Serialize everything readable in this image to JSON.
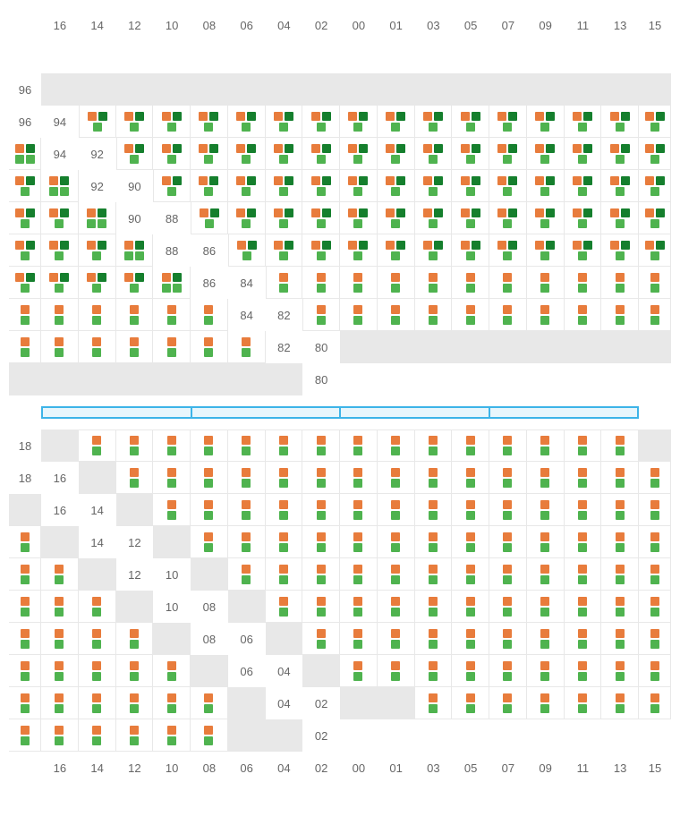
{
  "layout": {
    "columns": [
      "16",
      "14",
      "12",
      "10",
      "08",
      "06",
      "04",
      "02",
      "00",
      "01",
      "03",
      "05",
      "07",
      "09",
      "11",
      "13",
      "15"
    ],
    "top_rows": [
      "96",
      "94",
      "92",
      "90",
      "88",
      "86",
      "84",
      "82",
      "80"
    ],
    "bottom_rows": [
      "18",
      "16",
      "14",
      "12",
      "10",
      "08",
      "06",
      "04",
      "02"
    ],
    "separator_segments": 4
  },
  "colors": {
    "orange": "#e87c3c",
    "green": "#4fb34f",
    "dark_green": "#157f2d",
    "empty_bg": "#e8e8e8",
    "border": "#e8e8e8",
    "label": "#666666",
    "sep_border": "#3db4e8",
    "sep_fill": "#e8f6fc"
  },
  "cell_patterns": {
    "empty": {
      "empty": true
    },
    "quad": {
      "rows": [
        [
          "orange",
          "dark_green"
        ],
        [
          "green",
          "green"
        ]
      ]
    },
    "triple": {
      "rows": [
        [
          "orange",
          "dark_green"
        ],
        [
          "green"
        ]
      ]
    },
    "stack": {
      "rows": [
        [
          "orange"
        ],
        [
          "green"
        ]
      ]
    }
  },
  "top_grid": [
    [
      "empty",
      "empty",
      "empty",
      "empty",
      "empty",
      "empty",
      "empty",
      "empty",
      "empty",
      "empty",
      "empty",
      "empty",
      "empty",
      "empty",
      "empty",
      "empty",
      "empty"
    ],
    [
      "triple",
      "triple",
      "triple",
      "triple",
      "triple",
      "triple",
      "triple",
      "triple",
      "triple",
      "triple",
      "triple",
      "triple",
      "triple",
      "triple",
      "triple",
      "triple",
      "quad"
    ],
    [
      "triple",
      "triple",
      "triple",
      "triple",
      "triple",
      "triple",
      "triple",
      "triple",
      "triple",
      "triple",
      "triple",
      "triple",
      "triple",
      "triple",
      "triple",
      "triple",
      "quad"
    ],
    [
      "triple",
      "triple",
      "triple",
      "triple",
      "triple",
      "triple",
      "triple",
      "triple",
      "triple",
      "triple",
      "triple",
      "triple",
      "triple",
      "triple",
      "triple",
      "triple",
      "quad"
    ],
    [
      "triple",
      "triple",
      "triple",
      "triple",
      "triple",
      "triple",
      "triple",
      "triple",
      "triple",
      "triple",
      "triple",
      "triple",
      "triple",
      "triple",
      "triple",
      "triple",
      "quad"
    ],
    [
      "triple",
      "triple",
      "triple",
      "triple",
      "triple",
      "triple",
      "triple",
      "triple",
      "triple",
      "triple",
      "triple",
      "triple",
      "triple",
      "triple",
      "triple",
      "triple",
      "quad"
    ],
    [
      "stack",
      "stack",
      "stack",
      "stack",
      "stack",
      "stack",
      "stack",
      "stack",
      "stack",
      "stack",
      "stack",
      "stack",
      "stack",
      "stack",
      "stack",
      "stack",
      "stack"
    ],
    [
      "stack",
      "stack",
      "stack",
      "stack",
      "stack",
      "stack",
      "stack",
      "stack",
      "stack",
      "stack",
      "stack",
      "stack",
      "stack",
      "stack",
      "stack",
      "stack",
      "stack"
    ],
    [
      "empty",
      "empty",
      "empty",
      "empty",
      "empty",
      "empty",
      "empty",
      "empty",
      "empty",
      "empty",
      "empty",
      "empty",
      "empty",
      "empty",
      "empty",
      "empty",
      "empty"
    ]
  ],
  "bottom_grid": [
    [
      "empty",
      "stack",
      "stack",
      "stack",
      "stack",
      "stack",
      "stack",
      "stack",
      "stack",
      "stack",
      "stack",
      "stack",
      "stack",
      "stack",
      "stack",
      "stack",
      "empty"
    ],
    [
      "empty",
      "stack",
      "stack",
      "stack",
      "stack",
      "stack",
      "stack",
      "stack",
      "stack",
      "stack",
      "stack",
      "stack",
      "stack",
      "stack",
      "stack",
      "stack",
      "empty"
    ],
    [
      "empty",
      "stack",
      "stack",
      "stack",
      "stack",
      "stack",
      "stack",
      "stack",
      "stack",
      "stack",
      "stack",
      "stack",
      "stack",
      "stack",
      "stack",
      "stack",
      "empty"
    ],
    [
      "empty",
      "stack",
      "stack",
      "stack",
      "stack",
      "stack",
      "stack",
      "stack",
      "stack",
      "stack",
      "stack",
      "stack",
      "stack",
      "stack",
      "stack",
      "stack",
      "empty"
    ],
    [
      "empty",
      "stack",
      "stack",
      "stack",
      "stack",
      "stack",
      "stack",
      "stack",
      "stack",
      "stack",
      "stack",
      "stack",
      "stack",
      "stack",
      "stack",
      "stack",
      "empty"
    ],
    [
      "empty",
      "stack",
      "stack",
      "stack",
      "stack",
      "stack",
      "stack",
      "stack",
      "stack",
      "stack",
      "stack",
      "stack",
      "stack",
      "stack",
      "stack",
      "stack",
      "empty"
    ],
    [
      "empty",
      "stack",
      "stack",
      "stack",
      "stack",
      "stack",
      "stack",
      "stack",
      "stack",
      "stack",
      "stack",
      "stack",
      "stack",
      "stack",
      "stack",
      "stack",
      "empty"
    ],
    [
      "empty",
      "stack",
      "stack",
      "stack",
      "stack",
      "stack",
      "stack",
      "stack",
      "stack",
      "stack",
      "stack",
      "stack",
      "stack",
      "stack",
      "stack",
      "stack",
      "empty"
    ],
    [
      "empty",
      "empty",
      "stack",
      "stack",
      "stack",
      "stack",
      "stack",
      "stack",
      "stack",
      "stack",
      "stack",
      "stack",
      "stack",
      "stack",
      "stack",
      "empty",
      "empty"
    ]
  ]
}
